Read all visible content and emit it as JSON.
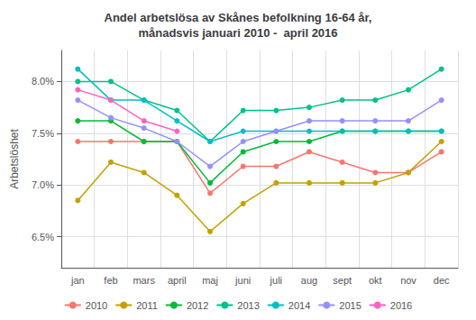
{
  "chart_data": {
    "type": "line",
    "title": "Andel arbetslösa av Skånes befolkning 16-64 år,\nmånadsvis januari 2010 -  april 2016",
    "y_label": "Arbetslöshet",
    "categories": [
      "jan",
      "feb",
      "mars",
      "april",
      "maj",
      "juni",
      "juli",
      "aug",
      "sept",
      "okt",
      "nov",
      "dec"
    ],
    "series": [
      {
        "name": "2010",
        "color": "#F8766D",
        "values": [
          7.42,
          7.42,
          7.42,
          7.42,
          6.92,
          7.18,
          7.18,
          7.32,
          7.22,
          7.12,
          7.12,
          7.32
        ]
      },
      {
        "name": "2011",
        "color": "#C4A000",
        "values": [
          6.85,
          7.22,
          7.12,
          6.9,
          6.55,
          6.82,
          7.02,
          7.02,
          7.02,
          7.02,
          7.12,
          7.42
        ]
      },
      {
        "name": "2012",
        "color": "#00BA38",
        "values": [
          7.62,
          7.62,
          7.42,
          7.42,
          7.02,
          7.32,
          7.42,
          7.42,
          7.52,
          7.52,
          7.52,
          7.52
        ]
      },
      {
        "name": "2013",
        "color": "#00C08B",
        "values": [
          8.0,
          8.0,
          7.82,
          7.72,
          7.42,
          7.72,
          7.72,
          7.75,
          7.82,
          7.82,
          7.92,
          8.12
        ]
      },
      {
        "name": "2014",
        "color": "#00BFC4",
        "values": [
          8.12,
          7.82,
          7.82,
          7.62,
          7.42,
          7.52,
          7.52,
          7.52,
          7.52,
          7.52,
          7.52,
          7.52
        ]
      },
      {
        "name": "2015",
        "color": "#9590FF",
        "values": [
          7.82,
          7.65,
          7.55,
          7.42,
          7.18,
          7.42,
          7.52,
          7.62,
          7.62,
          7.62,
          7.62,
          7.82
        ]
      },
      {
        "name": "2016",
        "color": "#FF61C3",
        "values": [
          7.92,
          7.82,
          7.62,
          7.52,
          null,
          null,
          null,
          null,
          null,
          null,
          null,
          null
        ]
      }
    ],
    "ylim": [
      6.2,
      8.3
    ],
    "yticks": [
      {
        "value": 6.5,
        "label": "6.5%"
      },
      {
        "value": 7.0,
        "label": "7.0%"
      },
      {
        "value": 7.5,
        "label": "7.5%"
      },
      {
        "value": 8.0,
        "label": "8.0%"
      }
    ],
    "marker": "circle",
    "grid": true,
    "legend": "bottom"
  }
}
